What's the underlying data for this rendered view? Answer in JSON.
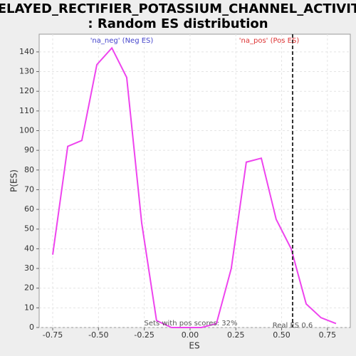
{
  "chart_data": {
    "type": "line",
    "title_lines": [
      "DELAYED_RECTIFIER_POTASSIUM_CHANNEL_ACTIVITY",
      ": Random ES distribution"
    ],
    "x_label": "ES",
    "y_label": "P(ES)",
    "x": [
      -0.75,
      -0.668,
      -0.591,
      -0.509,
      -0.427,
      -0.346,
      -0.264,
      -0.183,
      -0.101,
      -0.019,
      0.062,
      0.144,
      0.225,
      0.307,
      0.389,
      0.47,
      0.552,
      0.634,
      0.715,
      0.797
    ],
    "series": [
      {
        "name": "P(ES)",
        "color": "#ee44ee",
        "values": [
          37,
          92,
          95,
          133.5,
          142,
          127,
          53,
          3.5,
          0,
          0,
          0,
          2,
          30,
          84,
          86,
          55,
          40,
          12,
          5,
          2
        ]
      }
    ],
    "xlim": [
      -0.824,
      0.875
    ],
    "ylim": [
      0,
      149
    ],
    "xticks": [
      -0.75,
      {
        "value": -0.5,
        "label": "-0.50"
      },
      -0.25,
      {
        "value": 0,
        "label": "0.00"
      },
      0.25,
      {
        "value": 0.5,
        "label": "0.50"
      },
      0.75
    ],
    "yticks": [
      0,
      10,
      20,
      30,
      40,
      50,
      60,
      70,
      80,
      90,
      100,
      110,
      120,
      130,
      140
    ],
    "grid": true,
    "real_es": {
      "value": 0.56,
      "label": "Real ES 0.6"
    },
    "neg_label": {
      "text": "'na_neg' (Neg ES)",
      "color": "#4444cc"
    },
    "pos_label": {
      "text": "'na_pos' (Pos ES)",
      "color": "#dd3333"
    },
    "pos_scores_text": "Sets with pos scores: 32%"
  }
}
